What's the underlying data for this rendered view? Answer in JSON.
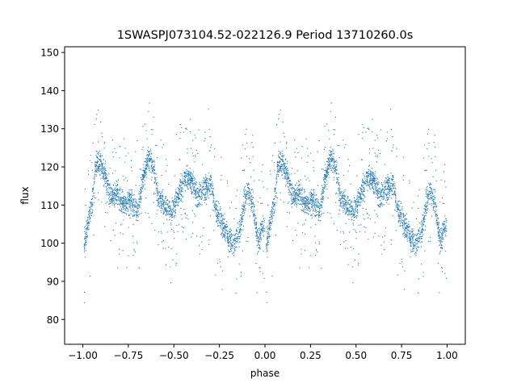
{
  "chart_data": {
    "type": "scatter",
    "title": "1SWASPJ073104.52-022126.9 Period 13710260.0s",
    "xlabel": "phase",
    "ylabel": "flux",
    "xlim": [
      -1.1,
      1.1
    ],
    "ylim": [
      73.5,
      151.5
    ],
    "xticks": [
      -1.0,
      -0.75,
      -0.5,
      -0.25,
      0.0,
      0.25,
      0.5,
      0.75,
      1.0
    ],
    "xtick_labels": [
      "−1.00",
      "−0.75",
      "−0.50",
      "−0.25",
      "0.00",
      "0.25",
      "0.50",
      "0.75",
      "1.00"
    ],
    "yticks": [
      80,
      90,
      100,
      110,
      120,
      130,
      140,
      150
    ],
    "ytick_labels": [
      "80",
      "90",
      "100",
      "110",
      "120",
      "130",
      "140",
      "150"
    ],
    "grid": false,
    "point_color": "#1f77b4",
    "folded_profile": {
      "phase": [
        0.0,
        0.02,
        0.05,
        0.07,
        0.1,
        0.13,
        0.15,
        0.18,
        0.2,
        0.23,
        0.26,
        0.3,
        0.33,
        0.36,
        0.38,
        0.41,
        0.45,
        0.48,
        0.5,
        0.53,
        0.56,
        0.6,
        0.63,
        0.66,
        0.7,
        0.73,
        0.76,
        0.78,
        0.8,
        0.83,
        0.86,
        0.88,
        0.9,
        0.93,
        0.96,
        0.98,
        1.0
      ],
      "flux": [
        98,
        104,
        111,
        121,
        121,
        116,
        112,
        113,
        112,
        110,
        111,
        109,
        117,
        123,
        121,
        112,
        110,
        108,
        110,
        114,
        117,
        116,
        112,
        114,
        116,
        108,
        106,
        103,
        101,
        100,
        103,
        110,
        114,
        111,
        100,
        104,
        106
      ]
    }
  }
}
